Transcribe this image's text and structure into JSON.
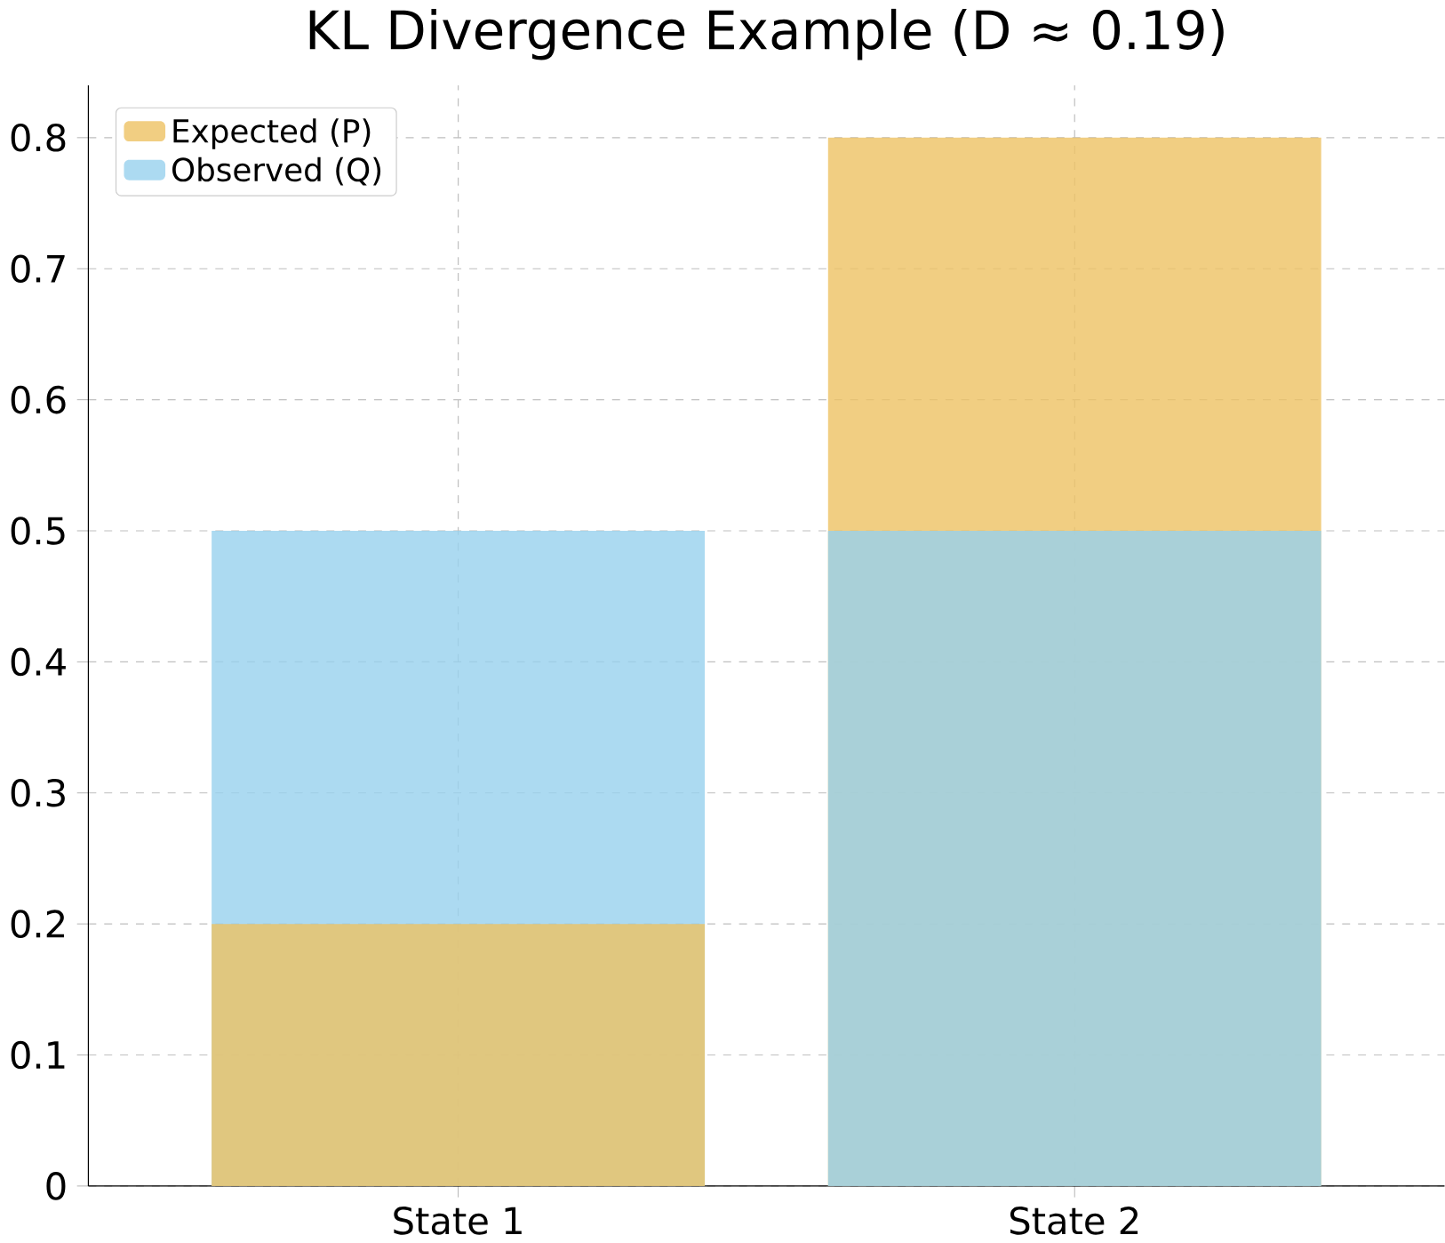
{
  "chart_data": {
    "type": "bar",
    "title": "KL Divergence Example (D ≈ 0.19)",
    "categories": [
      "State 1",
      "State 2"
    ],
    "series": [
      {
        "name": "Expected (P)",
        "color": "#edc263",
        "values": [
          0.2,
          0.8
        ]
      },
      {
        "name": "Observed (Q)",
        "color": "#97d1ee",
        "values": [
          0.5,
          0.5
        ]
      }
    ],
    "ylim": [
      0,
      0.84
    ],
    "yticks": [
      0,
      0.1,
      0.2,
      0.3,
      0.4,
      0.5,
      0.6,
      0.7,
      0.8
    ],
    "grid": true,
    "legend": "top left"
  }
}
